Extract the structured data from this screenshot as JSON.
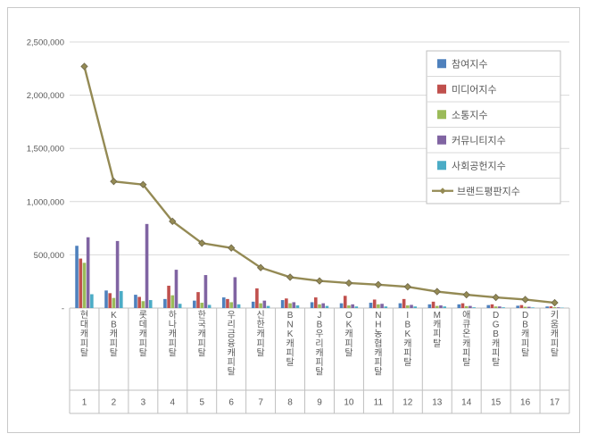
{
  "chart_data": {
    "type": "bar",
    "subtype": "clustered-bars-with-line-overlay",
    "title": "",
    "xlabel": "",
    "ylabel": "",
    "grid": true,
    "legend_position": "right-top",
    "categories": [
      "현대캐피탈",
      "KB캐피탈",
      "롯데캐피탈",
      "하나캐피탈",
      "한국캐피탈",
      "우리금융캐피탈",
      "신한캐피탈",
      "BNK캐피탈",
      "JB우리캐피탈",
      "OK캐피탈",
      "NH농협캐피탈",
      "IBK캐피탈",
      "M캐피탈",
      "애큐온캐피탈",
      "DGB캐피탈",
      "DB캐피탈",
      "키움캐피탈"
    ],
    "ranks": [
      "1",
      "2",
      "3",
      "4",
      "5",
      "6",
      "7",
      "8",
      "9",
      "10",
      "11",
      "12",
      "13",
      "14",
      "15",
      "16",
      "17"
    ],
    "y_axis": {
      "min": 0,
      "max": 2500000,
      "tick_values": [
        2500000,
        2000000,
        1500000,
        1000000,
        500000,
        0
      ],
      "ticks": [
        "2,500,000",
        "2,000,000",
        "1,500,000",
        "1,000,000",
        "500,000",
        "-"
      ]
    },
    "bar_series": [
      {
        "name": "참여지수",
        "color": "#4F81BD",
        "values": [
          585000,
          165000,
          125000,
          85000,
          70000,
          100000,
          60000,
          75000,
          55000,
          45000,
          50000,
          45000,
          35000,
          35000,
          28000,
          22000,
          15000
        ]
      },
      {
        "name": "미디어지수",
        "color": "#C0504D",
        "values": [
          465000,
          140000,
          105000,
          210000,
          150000,
          85000,
          185000,
          90000,
          100000,
          115000,
          80000,
          85000,
          60000,
          45000,
          35000,
          28000,
          16000
        ]
      },
      {
        "name": "소통지수",
        "color": "#9BBB59",
        "values": [
          425000,
          95000,
          65000,
          120000,
          50000,
          55000,
          45000,
          45000,
          35000,
          25000,
          35000,
          25000,
          20000,
          18000,
          15000,
          12000,
          8000
        ]
      },
      {
        "name": "커뮤니티지수",
        "color": "#8064A2",
        "values": [
          665000,
          630000,
          790000,
          360000,
          310000,
          290000,
          70000,
          55000,
          45000,
          35000,
          40000,
          30000,
          25000,
          20000,
          15000,
          12000,
          7000
        ]
      },
      {
        "name": "사회공헌지수",
        "color": "#4BACC6",
        "values": [
          130000,
          160000,
          75000,
          40000,
          30000,
          35000,
          20000,
          25000,
          20000,
          15000,
          15000,
          15000,
          15000,
          7000,
          7000,
          6000,
          4000
        ]
      }
    ],
    "line_series": {
      "name": "브랜드평판지수",
      "color": "#948A54",
      "marker": "diamond",
      "values": [
        2270000,
        1190000,
        1160000,
        815000,
        610000,
        565000,
        380000,
        290000,
        255000,
        235000,
        220000,
        200000,
        155000,
        125000,
        100000,
        80000,
        50000
      ]
    }
  }
}
